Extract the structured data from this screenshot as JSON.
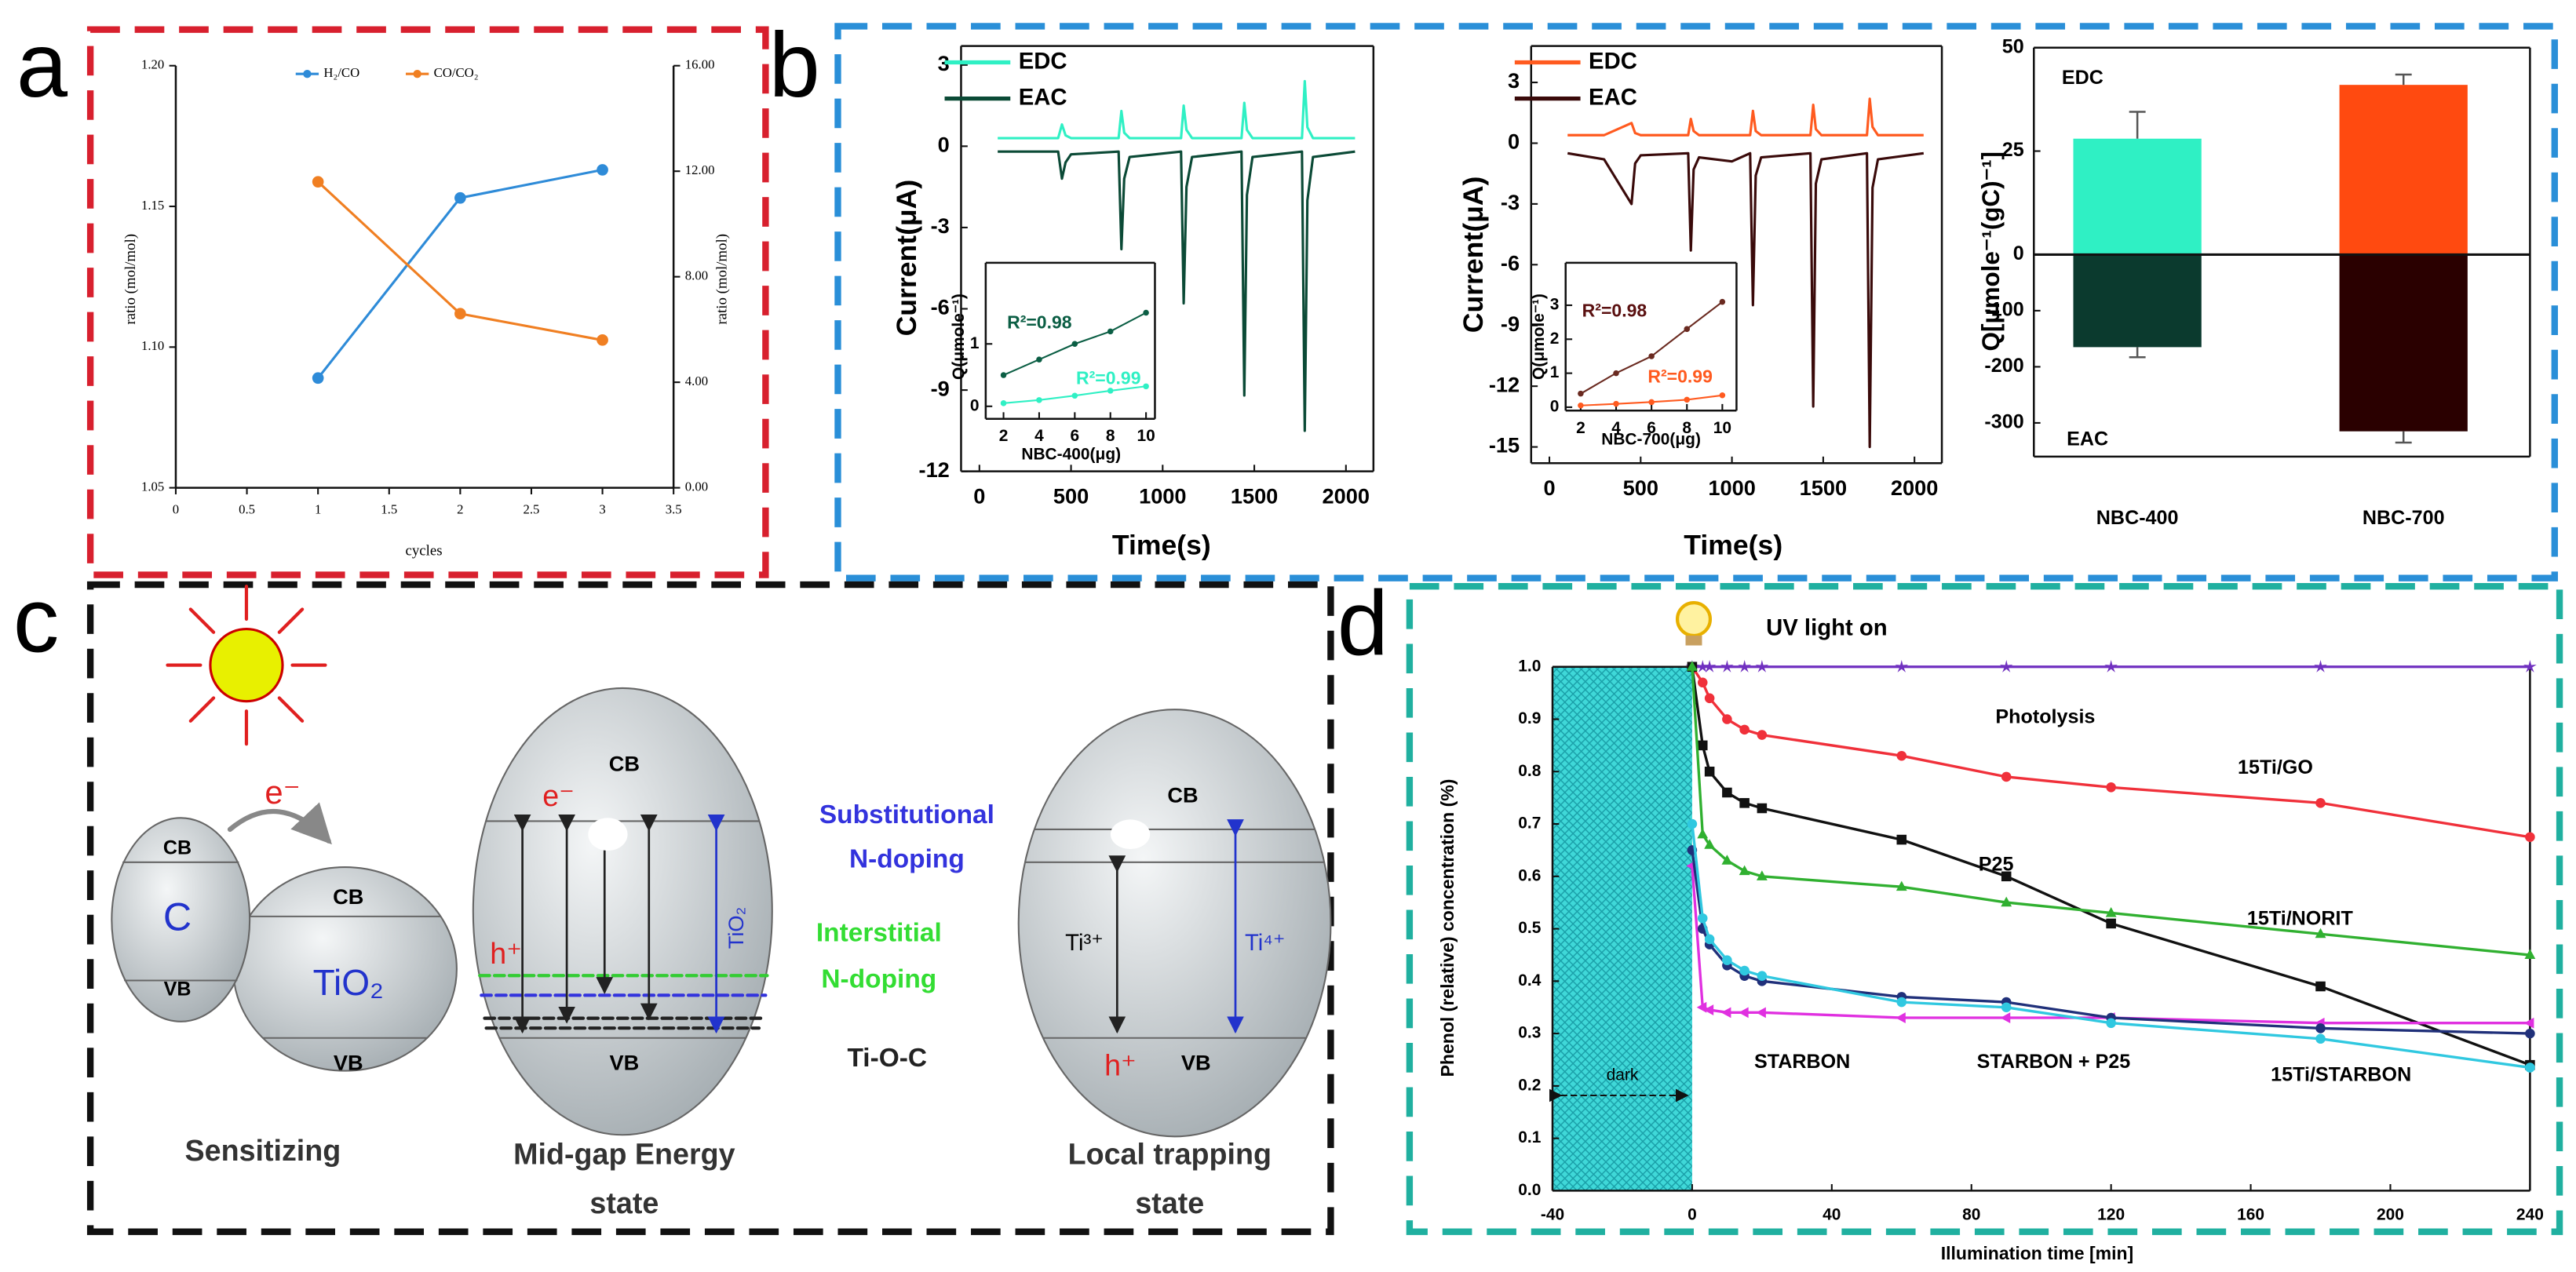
{
  "panel_labels": [
    "a",
    "b",
    "c",
    "d"
  ],
  "chart_data": [
    {
      "type": "line",
      "x": [
        1,
        2,
        3
      ],
      "xlim": [
        0,
        3.5
      ],
      "xticks": [
        0,
        0.5,
        1,
        1.5,
        2,
        2.5,
        3,
        3.5
      ],
      "ylim": [
        1.05,
        1.2
      ],
      "yticks": [
        1.05,
        {
          "value": 1.1,
          "label": "1.10"
        },
        1.15,
        {
          "value": 1.2,
          "label": "1.20"
        }
      ],
      "y2lim": [
        0,
        16
      ],
      "y2ticks": [
        {
          "value": 0,
          "label": "0.00"
        },
        {
          "value": 4,
          "label": "4.00"
        },
        {
          "value": 8,
          "label": "8.00"
        },
        {
          "value": 12,
          "label": "12.00"
        },
        {
          "value": 16,
          "label": "16.00"
        }
      ],
      "xlabel": "cycles",
      "ylabel": "ratio (mol/mol)",
      "y2label": "ratio (mol/mol)",
      "legend": "top",
      "series": [
        {
          "name": "H₂/CO",
          "color": "#2e8bd8",
          "marker": "circle",
          "values": [
            1.089,
            1.153,
            1.163
          ]
        },
        {
          "name": "CO/CO₂",
          "color": "#f07f22",
          "marker": "circle",
          "axis": "y2",
          "values": [
            11.6,
            6.6,
            5.6
          ]
        }
      ]
    },
    {
      "type": "line",
      "x": [
        100,
        430,
        450,
        470,
        500,
        760,
        775,
        790,
        820,
        1100,
        1115,
        1130,
        1160,
        1430,
        1445,
        1460,
        1490,
        1760,
        1775,
        1790,
        1820,
        2050
      ],
      "xlim": [
        -100,
        2150
      ],
      "xticks": [
        0,
        500,
        1000,
        1500,
        2000
      ],
      "ylim": [
        -12,
        3.7
      ],
      "yticks": [
        3,
        0,
        -3,
        -6,
        -9,
        -12
      ],
      "xlabel": "Time(s)",
      "ylabel": "Current(μA)",
      "legend": "upper left",
      "series": [
        {
          "name": "EDC",
          "color": "#2ff0c4",
          "values": [
            0.3,
            0.3,
            0.8,
            0.4,
            0.3,
            0.3,
            1.3,
            0.5,
            0.3,
            0.3,
            1.5,
            0.6,
            0.3,
            0.3,
            1.6,
            0.6,
            0.3,
            0.3,
            2.4,
            0.7,
            0.3,
            0.3
          ]
        },
        {
          "name": "EAC",
          "color": "#0b4a36",
          "values": [
            -0.2,
            -0.2,
            -1.2,
            -0.6,
            -0.3,
            -0.2,
            -3.8,
            -1.2,
            -0.4,
            -0.2,
            -5.8,
            -1.5,
            -0.4,
            -0.2,
            -9.2,
            -1.8,
            -0.4,
            -0.2,
            -10.5,
            -2,
            -0.4,
            -0.2
          ]
        }
      ]
    },
    {
      "type": "line",
      "x": [
        2,
        4,
        6,
        8,
        10
      ],
      "xlim": [
        1,
        10.5
      ],
      "xticks": [
        2,
        4,
        6,
        8,
        10
      ],
      "ylim": [
        -0.2,
        2.3
      ],
      "yticks": [
        0,
        1
      ],
      "xlabel": "NBC-400(μg)",
      "ylabel": "Q(μmole⁻¹)",
      "annotations": [
        {
          "text": "R²=0.98",
          "color": "#0b5e44"
        },
        {
          "text": "R²=0.99",
          "color": "#2ff0c4"
        }
      ],
      "series": [
        {
          "name": "EAC",
          "color": "#0b5e44",
          "marker": "circle",
          "values": [
            0.5,
            0.75,
            1.0,
            1.2,
            1.5
          ]
        },
        {
          "name": "EDC",
          "color": "#2ff0c4",
          "marker": "circle",
          "values": [
            0.05,
            0.1,
            0.17,
            0.25,
            0.32
          ]
        }
      ]
    },
    {
      "type": "line",
      "x": [
        100,
        300,
        450,
        470,
        500,
        760,
        775,
        790,
        820,
        1000,
        1100,
        1115,
        1130,
        1160,
        1430,
        1445,
        1460,
        1490,
        1740,
        1755,
        1770,
        1800,
        2050
      ],
      "xlim": [
        -100,
        2150
      ],
      "xticks": [
        0,
        500,
        1000,
        1500,
        2000
      ],
      "ylim": [
        -15.8,
        4.8
      ],
      "yticks": [
        3,
        0,
        -3,
        -6,
        -9,
        -12,
        -15
      ],
      "xlabel": "Time(s)",
      "ylabel": "Current(μA)",
      "legend": "upper left",
      "series": [
        {
          "name": "EDC",
          "color": "#ff5a1f",
          "values": [
            0.4,
            0.4,
            1.0,
            0.5,
            0.4,
            0.4,
            1.2,
            0.6,
            0.4,
            0.4,
            0.4,
            1.6,
            0.6,
            0.4,
            0.4,
            1.9,
            0.7,
            0.4,
            0.4,
            2.2,
            0.8,
            0.4,
            0.4
          ]
        },
        {
          "name": "EAC",
          "color": "#3a0a0a",
          "values": [
            -0.5,
            -0.8,
            -3,
            -1,
            -0.6,
            -0.5,
            -5.3,
            -1.3,
            -0.7,
            -0.9,
            -0.5,
            -8,
            -1.6,
            -0.7,
            -0.5,
            -13,
            -2,
            -0.8,
            -0.5,
            -15,
            -2.2,
            -0.8,
            -0.5
          ]
        }
      ]
    },
    {
      "type": "line",
      "x": [
        2,
        4,
        6,
        8,
        10
      ],
      "xlim": [
        1.15,
        10.8
      ],
      "xticks": [
        2,
        4,
        6,
        8,
        10
      ],
      "ylim": [
        -0.1,
        4.25
      ],
      "yticks": [
        0,
        1,
        2,
        3
      ],
      "xlabel": "NBC-700(μg)",
      "ylabel": "Q(μmole⁻¹)",
      "annotations": [
        {
          "text": "R²=0.98",
          "color": "#5a1010"
        },
        {
          "text": "R²=0.99",
          "color": "#ff5a1f"
        }
      ],
      "series": [
        {
          "name": "EAC",
          "color": "#6a2a20",
          "marker": "circle",
          "values": [
            0.4,
            1.0,
            1.5,
            2.3,
            3.1
          ]
        },
        {
          "name": "EDC",
          "color": "#ff5a1f",
          "marker": "circle",
          "values": [
            0.05,
            0.1,
            0.15,
            0.22,
            0.35
          ]
        }
      ]
    },
    {
      "type": "bar",
      "categories": [
        "NBC-400",
        "NBC-700"
      ],
      "ylim_upper": [
        0,
        50
      ],
      "ylim_lower": [
        -360,
        0
      ],
      "yticks": [
        50,
        25,
        0,
        -100,
        -200,
        -300
      ],
      "ylabel": "Q[μmole⁻¹(gC)⁻¹]",
      "series": [
        {
          "name": "EDC",
          "colors": [
            "#2ff0c4",
            "#ff4a10"
          ],
          "values": [
            28,
            41
          ],
          "errors": [
            6.5,
            2.5
          ]
        },
        {
          "name": "EAC",
          "colors": [
            "#0b3a2e",
            "#2a0000"
          ],
          "values": [
            -165,
            -315
          ],
          "errors": [
            18,
            20
          ]
        }
      ]
    },
    {
      "type": "line",
      "x": [
        0,
        3,
        5,
        10,
        15,
        20,
        60,
        90,
        120,
        180,
        240
      ],
      "xlim": [
        -40,
        240
      ],
      "xticks": [
        -40,
        0,
        40,
        80,
        120,
        160,
        200,
        240
      ],
      "ylim": [
        0,
        1
      ],
      "yticks": [
        {
          "value": 0,
          "label": "0.0"
        },
        0.1,
        0.2,
        0.3,
        0.4,
        0.5,
        0.6,
        0.7,
        0.8,
        0.9,
        {
          "value": 1,
          "label": "1.0"
        }
      ],
      "xlabel": "Illumination time [min]",
      "ylabel": "Phenol (relative) concentration (%)",
      "shaded_region": [
        -40,
        0
      ],
      "shaded_label": "dark",
      "annotation": "UV light on",
      "series": [
        {
          "name": "Photolysis",
          "color": "#7030c0",
          "marker": "star",
          "values": [
            1,
            1,
            1,
            1,
            1,
            1,
            1,
            1,
            1,
            1,
            1
          ]
        },
        {
          "name": "15Ti/GO",
          "color": "#f0303a",
          "marker": "circle",
          "values": [
            1,
            0.97,
            0.94,
            0.9,
            0.88,
            0.87,
            0.83,
            0.79,
            0.77,
            0.74,
            0.675
          ]
        },
        {
          "name": "P25",
          "color": "#111111",
          "marker": "square",
          "values": [
            1,
            0.85,
            0.8,
            0.76,
            0.74,
            0.73,
            0.67,
            0.6,
            0.51,
            0.39,
            0.24
          ]
        },
        {
          "name": "15Ti/NORIT",
          "color": "#30b030",
          "marker": "triangle",
          "values": [
            1,
            0.68,
            0.66,
            0.63,
            0.61,
            0.6,
            0.58,
            0.55,
            0.53,
            0.49,
            0.45
          ]
        },
        {
          "name": "STARBON",
          "color": "#e030e0",
          "marker": "ltri",
          "values": [
            0.62,
            0.35,
            0.345,
            0.34,
            0.34,
            0.34,
            0.33,
            0.33,
            0.33,
            0.32,
            0.32
          ]
        },
        {
          "name": "STARBON + P25",
          "color": "#20307a",
          "marker": "circle",
          "values": [
            0.65,
            0.5,
            0.47,
            0.43,
            0.41,
            0.4,
            0.37,
            0.36,
            0.33,
            0.31,
            0.3
          ]
        },
        {
          "name": "15Ti/STARBON",
          "color": "#30c8e0",
          "marker": "circle",
          "values": [
            0.7,
            0.52,
            0.48,
            0.44,
            0.42,
            0.41,
            0.36,
            0.35,
            0.32,
            0.29,
            0.235
          ]
        }
      ]
    }
  ],
  "diagram": {
    "sensitizing": {
      "electron": "e⁻",
      "c_cb": "CB",
      "c": "C",
      "c_vb": "VB",
      "tio2_cb": "CB",
      "tio2": "TiO₂",
      "tio2_vb": "VB",
      "label": "Sensitizing"
    },
    "mid_gap": {
      "cb": "CB",
      "electron": "e⁻",
      "hole": "h⁺",
      "tio2": "TiO₂",
      "vb": "VB",
      "label": [
        "Mid-gap Energy",
        "state"
      ]
    },
    "doping": {
      "substitutional": [
        "Substitutional",
        "N-doping"
      ],
      "interstitial": [
        "Interstitial",
        "N-doping"
      ],
      "tioc": "Ti-O-C"
    },
    "local_trapping": {
      "cb": "CB",
      "ti3": "Ti³⁺",
      "ti4": "Ti⁴⁺",
      "hole": "h⁺",
      "vb": "VB",
      "label": [
        "Local trapping",
        "state"
      ]
    }
  }
}
